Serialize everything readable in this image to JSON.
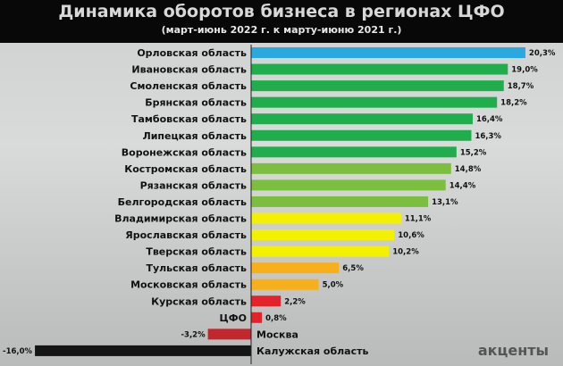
{
  "title": "Динамика оборотов бизнеса в регионах ЦФО",
  "subtitle": "(март-июнь 2022 г. к марту-июню 2021 г.)",
  "logo": "акценты",
  "chart_data": {
    "type": "bar",
    "orientation": "horizontal",
    "title": "Динамика оборотов бизнеса в регионах ЦФО",
    "subtitle": "(март-июнь 2022 г. к марту-июню 2021 г.)",
    "unit": "%",
    "categories": [
      "Орловская область",
      "Ивановская область",
      "Смоленская область",
      "Брянская область",
      "Тамбовская область",
      "Липецкая область",
      "Воронежская область",
      "Костромская область",
      "Рязанская область",
      "Белгородская область",
      "Владимирская область",
      "Ярославская область",
      "Тверская область",
      "Тульская область",
      "Московская область",
      "Курская область",
      "ЦФО",
      "Москва",
      "Калужская область"
    ],
    "values": [
      20.3,
      19.0,
      18.7,
      18.2,
      16.4,
      16.3,
      15.2,
      14.8,
      14.4,
      13.1,
      11.1,
      10.6,
      10.2,
      6.5,
      5.0,
      2.2,
      0.8,
      -3.2,
      -16.0
    ],
    "labels": [
      "20,3%",
      "19,0%",
      "18,7%",
      "18,2%",
      "16,4%",
      "16,3%",
      "15,2%",
      "14,8%",
      "14,4%",
      "13,1%",
      "11,1%",
      "10,6%",
      "10,2%",
      "6,5%",
      "5,0%",
      "2,2%",
      "0,8%",
      "-3,2%",
      "-16,0%"
    ],
    "colors": [
      "#2aa8e0",
      "#1fae4b",
      "#1fae4b",
      "#1fae4b",
      "#1fae4b",
      "#1fae4b",
      "#1fae4b",
      "#7cbf3f",
      "#7cbf3f",
      "#7cbf3f",
      "#f4f100",
      "#f4f100",
      "#f4f100",
      "#f7b01a",
      "#f7b01a",
      "#e3222a",
      "#e3222a",
      "#c1272d",
      "#151515"
    ],
    "grid": false
  }
}
